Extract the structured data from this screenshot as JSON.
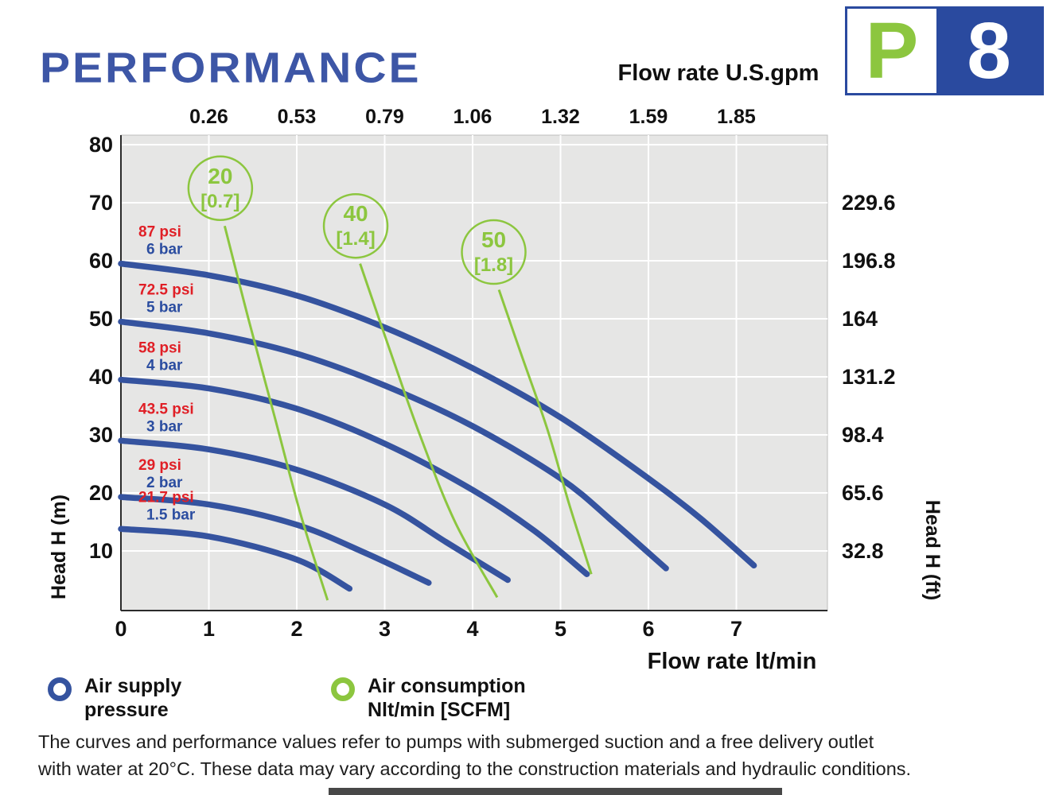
{
  "page": {
    "title": "PERFORMANCE"
  },
  "brand": {
    "letter": "P",
    "number": "8"
  },
  "chart_data": {
    "type": "line",
    "top_axis": {
      "label": "Flow rate U.S.gpm",
      "ticks": [
        "0.26",
        "0.53",
        "0.79",
        "1.06",
        "1.32",
        "1.59",
        "1.85"
      ],
      "at_x": [
        1,
        2,
        3,
        4,
        5,
        6,
        7
      ]
    },
    "x_axis": {
      "label": "Flow rate lt/min",
      "ticks": [
        0,
        1,
        2,
        3,
        4,
        5,
        6,
        7
      ],
      "range": [
        0,
        8.05
      ]
    },
    "y_left": {
      "label": "Head H (m)",
      "ticks": [
        80,
        70,
        60,
        50,
        40,
        30,
        20,
        10
      ],
      "range": [
        0,
        82
      ]
    },
    "y_right": {
      "label": "Head H (ft)",
      "ticks": [
        "229.6",
        "196.8",
        "164",
        "131.2",
        "98.4",
        "65.6",
        "32.8"
      ],
      "at_head": [
        70,
        60,
        50,
        40,
        30,
        20,
        10
      ]
    },
    "series_pressure": [
      {
        "psi_label": "87 psi",
        "bar_label": "6 bar",
        "points": [
          [
            0,
            59.5
          ],
          [
            1,
            57.5
          ],
          [
            2,
            54
          ],
          [
            3,
            48.5
          ],
          [
            4,
            41.5
          ],
          [
            5,
            33
          ],
          [
            6,
            22.5
          ],
          [
            6.6,
            15.5
          ],
          [
            7.2,
            7.5
          ]
        ]
      },
      {
        "psi_label": "72.5 psi",
        "bar_label": "5 bar",
        "points": [
          [
            0,
            49.5
          ],
          [
            1,
            47.5
          ],
          [
            2,
            44
          ],
          [
            3,
            38.5
          ],
          [
            4,
            31.5
          ],
          [
            5,
            22.5
          ],
          [
            5.6,
            15
          ],
          [
            6.2,
            7
          ]
        ]
      },
      {
        "psi_label": "58 psi",
        "bar_label": "4 bar",
        "points": [
          [
            0,
            39.5
          ],
          [
            1,
            38
          ],
          [
            2,
            34.5
          ],
          [
            3,
            28.5
          ],
          [
            4,
            20.5
          ],
          [
            4.7,
            13.5
          ],
          [
            5.3,
            6
          ]
        ]
      },
      {
        "psi_label": "43.5 psi",
        "bar_label": "3 bar",
        "points": [
          [
            0,
            29
          ],
          [
            1,
            27.5
          ],
          [
            2,
            24
          ],
          [
            3,
            18
          ],
          [
            3.7,
            11.5
          ],
          [
            4.4,
            5
          ]
        ]
      },
      {
        "psi_label": "29 psi",
        "bar_label": "2 bar",
        "points": [
          [
            0,
            19.3
          ],
          [
            1,
            18
          ],
          [
            2,
            14.5
          ],
          [
            2.8,
            9.5
          ],
          [
            3.5,
            4.5
          ]
        ]
      },
      {
        "psi_label": "21.7 psi",
        "bar_label": "1.5 bar",
        "points": [
          [
            0,
            13.8
          ],
          [
            1,
            12.5
          ],
          [
            2,
            8.5
          ],
          [
            2.6,
            3.5
          ]
        ]
      }
    ],
    "series_air": [
      {
        "label": "20",
        "scfm": "[0.7]",
        "circle": {
          "x": 1.13,
          "head": 72.5
        },
        "points": [
          [
            1.18,
            66
          ],
          [
            1.45,
            50
          ],
          [
            1.75,
            33
          ],
          [
            2.05,
            16
          ],
          [
            2.35,
            1.5
          ]
        ]
      },
      {
        "label": "40",
        "scfm": "[1.4]",
        "circle": {
          "x": 2.67,
          "head": 66
        },
        "points": [
          [
            2.72,
            59.5
          ],
          [
            3.05,
            45
          ],
          [
            3.4,
            30
          ],
          [
            3.8,
            15
          ],
          [
            4.28,
            2
          ]
        ]
      },
      {
        "label": "50",
        "scfm": "[1.8]",
        "circle": {
          "x": 4.24,
          "head": 61.5
        },
        "points": [
          [
            4.3,
            55
          ],
          [
            4.55,
            44
          ],
          [
            4.85,
            31
          ],
          [
            5.1,
            18
          ],
          [
            5.35,
            6
          ]
        ]
      }
    ],
    "colors": {
      "pressure_curve": "#35539f",
      "air_curve": "#8cc63f",
      "psi_text": "#e01f26",
      "bar_text": "#2b4da0",
      "plot_bg": "#e6e6e5",
      "grid": "#ffffff",
      "axis_text": "#111111",
      "axis_line": "#2b2b2b"
    }
  },
  "legend": {
    "items": [
      {
        "icon": "blue-ring",
        "line1": "Air supply",
        "line2": "pressure"
      },
      {
        "icon": "green-ring",
        "line1": "Air consumption",
        "line2": "Nlt/min [SCFM]"
      }
    ]
  },
  "footer": {
    "line1": "The curves and performance values refer to pumps with submerged suction and a free delivery outlet",
    "line2": "with water at 20°C. These data may vary according to the construction materials and hydraulic conditions."
  }
}
